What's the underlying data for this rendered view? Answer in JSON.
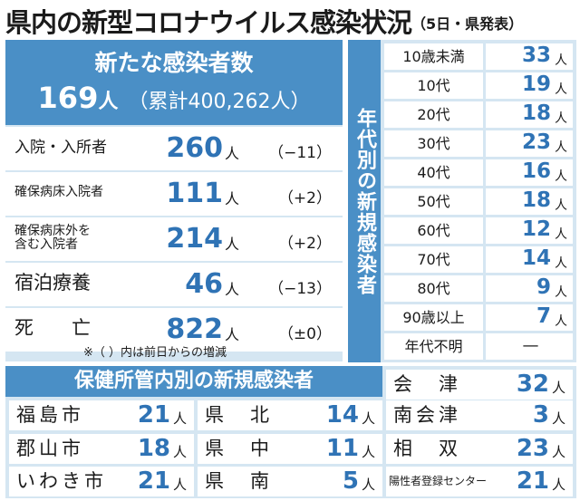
{
  "title": {
    "main": "県内の新型コロナウイルス感染状況",
    "sub": "（5日・県発表）"
  },
  "summary": {
    "heading": "新たな感染者数",
    "new_cases": "169",
    "new_unit": "人",
    "cumulative": "（累計400,262人）"
  },
  "status_rows": [
    {
      "label": "入院・入所者",
      "value": "260",
      "unit": "人",
      "diff": "（−11）"
    },
    {
      "label": "確保病床入院者",
      "value": "111",
      "unit": "人",
      "diff": "（+2）"
    },
    {
      "label": "確保病床外を\n含む入院者",
      "value": "214",
      "unit": "人",
      "diff": "（+2）"
    },
    {
      "label": "宿泊療養",
      "value": "46",
      "unit": "人",
      "diff": "（−13）"
    },
    {
      "label": "死　　亡",
      "value": "822",
      "unit": "人",
      "diff": "（±0）"
    }
  ],
  "note": "※（ ）内は前日からの増減",
  "age_table": {
    "heading": "年代別の新規感染者",
    "rows": [
      {
        "label": "10歳未満",
        "value": "33",
        "unit": "人"
      },
      {
        "label": "10代",
        "value": "19",
        "unit": "人"
      },
      {
        "label": "20代",
        "value": "18",
        "unit": "人"
      },
      {
        "label": "30代",
        "value": "23",
        "unit": "人"
      },
      {
        "label": "40代",
        "value": "16",
        "unit": "人"
      },
      {
        "label": "50代",
        "value": "18",
        "unit": "人"
      },
      {
        "label": "60代",
        "value": "12",
        "unit": "人"
      },
      {
        "label": "70代",
        "value": "14",
        "unit": "人"
      },
      {
        "label": "80代",
        "value": "9",
        "unit": "人"
      },
      {
        "label": "90歳以上",
        "value": "7",
        "unit": "人"
      },
      {
        "label": "年代不明",
        "value": "—",
        "unit": ""
      }
    ]
  },
  "region_table": {
    "heading": "保健所管内別の新規感染者",
    "cells": [
      {
        "label": "会　津",
        "value": "32",
        "unit": "人"
      },
      {
        "label": "福島市",
        "value": "21",
        "unit": "人"
      },
      {
        "label": "県　北",
        "value": "14",
        "unit": "人"
      },
      {
        "label": "南会津",
        "value": "3",
        "unit": "人"
      },
      {
        "label": "郡山市",
        "value": "18",
        "unit": "人"
      },
      {
        "label": "県　中",
        "value": "11",
        "unit": "人"
      },
      {
        "label": "相　双",
        "value": "23",
        "unit": "人"
      },
      {
        "label": "いわき市",
        "value": "21",
        "unit": "人"
      },
      {
        "label": "県　南",
        "value": "5",
        "unit": "人"
      },
      {
        "label": "陽性者登録センター",
        "value": "21",
        "unit": "人"
      }
    ]
  },
  "colors": {
    "accent": "#4a8fc6",
    "panel": "#d5e6f2",
    "number": "#2f73b5"
  }
}
